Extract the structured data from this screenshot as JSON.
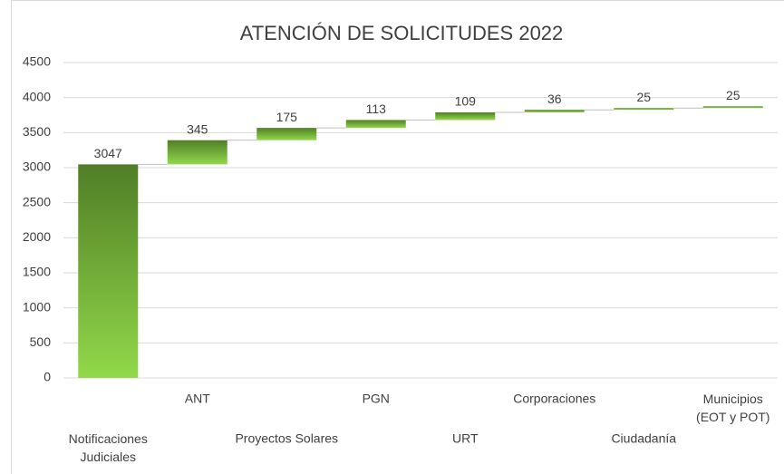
{
  "chart_data": {
    "type": "waterfall",
    "title": "ATENCIÓN DE SOLICITUDES 2022",
    "categories": [
      "Notificaciones\nJudiciales",
      "ANT",
      "Proyectos Solares",
      "PGN",
      "URT",
      "Corporaciones",
      "Ciudadanía",
      "Municipios\n(EOT y POT)"
    ],
    "values": [
      3047,
      345,
      175,
      113,
      109,
      36,
      25,
      25
    ],
    "color": "#92d050",
    "ylim": [
      0,
      4500
    ],
    "yticks": [
      0,
      500,
      1000,
      1500,
      2000,
      2500,
      3000,
      3500,
      4000,
      4500
    ],
    "grid": true
  }
}
